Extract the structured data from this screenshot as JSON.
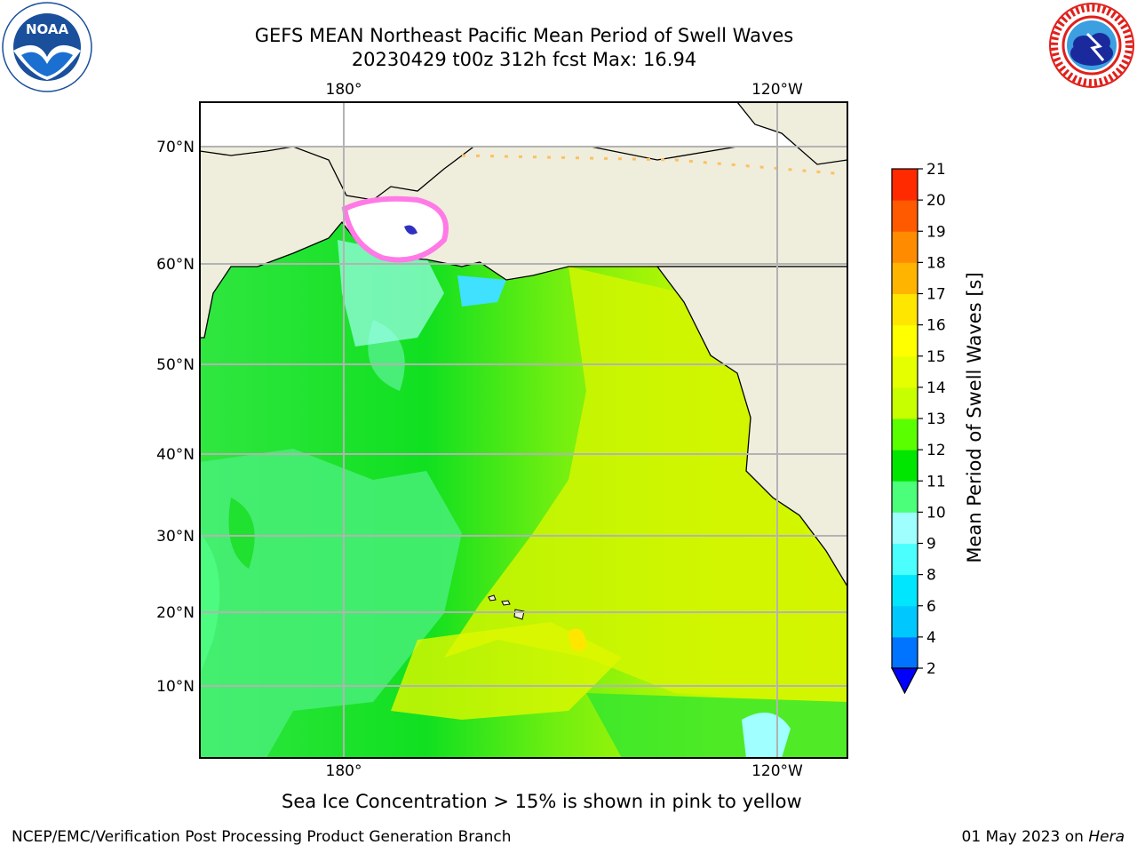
{
  "header": {
    "title_line1": "GEFS MEAN Northeast Pacific Mean Period of Swell Waves",
    "title_line2": "20230429 t00z 312h fcst   Max: 16.94"
  },
  "logos": {
    "left": {
      "icon": "noaa-logo",
      "text": "NOAA",
      "colors": {
        "ring": "#1a4f9c",
        "bird": "#ffffff"
      }
    },
    "right": {
      "icon": "nws-logo",
      "text": "NATIONAL WEATHER SERVICE",
      "colors": {
        "ring": "#e0201b",
        "cloud": "#1a2a9c"
      }
    }
  },
  "chart_data": {
    "type": "heatmap",
    "title": "GEFS MEAN Northeast Pacific Mean Period of Swell Waves",
    "subtitle": "20230429 t00z 312h fcst   Max: 16.94",
    "max_value": 16.94,
    "x_tick_labels": [
      "180°",
      "120°W"
    ],
    "y_tick_labels": [
      "70°N",
      "60°N",
      "50°N",
      "40°N",
      "30°N",
      "20°N",
      "10°N"
    ],
    "grid": true,
    "land_color": "#efeddc",
    "colorbar": {
      "label": "Mean Period of Swell Waves [s]",
      "ticks": [
        2,
        4,
        6,
        8,
        9,
        10,
        11,
        12,
        13,
        14,
        15,
        16,
        17,
        18,
        19,
        20,
        21
      ],
      "colors": [
        "#0073ff",
        "#00c8ff",
        "#00e6ff",
        "#4cffff",
        "#9fffff",
        "#4cff7a",
        "#00e600",
        "#5aff00",
        "#c8ff00",
        "#e6ff00",
        "#ffff00",
        "#ffe600",
        "#ffb400",
        "#ff8c00",
        "#ff5a00",
        "#ff2a00"
      ],
      "extend": "min",
      "extend_color": "#0000ff"
    },
    "regions": [
      {
        "area": "western North Pacific",
        "period_s": "9-11"
      },
      {
        "area": "central North Pacific",
        "period_s": "10-12"
      },
      {
        "area": "eastern Pacific off North America",
        "period_s": "12-14"
      },
      {
        "area": "south of Hawaii",
        "period_s": "13-16"
      }
    ],
    "annotation": "Sea Ice Concentration > 15% is shown in pink to yellow"
  },
  "footer": {
    "left": "NCEP/EMC/Verification Post Processing Product Generation Branch",
    "right_prefix": "01 May 2023 on ",
    "right_host": "Hera"
  }
}
